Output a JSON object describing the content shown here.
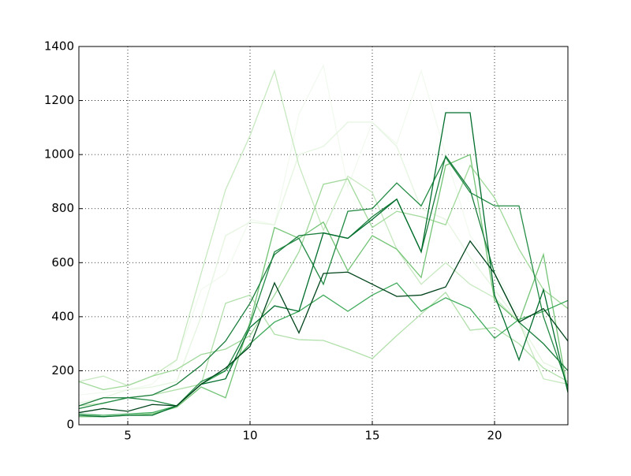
{
  "chart_data": {
    "type": "line",
    "x": [
      3,
      4,
      5,
      6,
      7,
      8,
      9,
      10,
      11,
      12,
      13,
      14,
      15,
      16,
      17,
      18,
      19,
      20,
      21,
      22,
      23
    ],
    "series": [
      {
        "color": "#f2faf0",
        "values": [
          110,
          120,
          130,
          150,
          240,
          500,
          560,
          760,
          740,
          1150,
          1330,
          880,
          1120,
          1040,
          1310,
          1000,
          700,
          580,
          400,
          300,
          200
        ]
      },
      {
        "color": "#e5f5e0",
        "values": [
          80,
          100,
          130,
          140,
          160,
          400,
          700,
          750,
          740,
          1000,
          1030,
          1120,
          1120,
          1030,
          800,
          760,
          620,
          500,
          380,
          230,
          190
        ]
      },
      {
        "color": "#c7e9c0",
        "values": [
          160,
          180,
          145,
          180,
          240,
          560,
          870,
          1070,
          1310,
          960,
          720,
          920,
          860,
          650,
          520,
          600,
          520,
          470,
          380,
          170,
          150
        ]
      },
      {
        "color": "#b2e0ab",
        "values": [
          70,
          80,
          100,
          110,
          130,
          150,
          450,
          480,
          335,
          315,
          312,
          280,
          245,
          330,
          410,
          490,
          350,
          360,
          300,
          210,
          160
        ]
      },
      {
        "color": "#a1d99b",
        "values": [
          160,
          130,
          145,
          180,
          205,
          260,
          280,
          330,
          480,
          640,
          890,
          910,
          730,
          790,
          770,
          740,
          960,
          840,
          650,
          500,
          430
        ]
      },
      {
        "color": "#74c476",
        "values": [
          30,
          30,
          35,
          40,
          65,
          140,
          100,
          380,
          730,
          690,
          750,
          570,
          700,
          650,
          545,
          960,
          1000,
          460,
          380,
          630,
          120
        ]
      },
      {
        "color": "#41ab5d",
        "values": [
          40,
          35,
          40,
          45,
          70,
          150,
          200,
          300,
          380,
          420,
          480,
          420,
          480,
          525,
          420,
          470,
          430,
          320,
          390,
          420,
          460
        ]
      },
      {
        "color": "#238b45",
        "values": [
          60,
          80,
          100,
          90,
          70,
          160,
          200,
          370,
          640,
          690,
          520,
          790,
          800,
          895,
          810,
          990,
          860,
          810,
          810,
          400,
          140
        ]
      },
      {
        "color": "#1a7d3c",
        "values": [
          70,
          100,
          100,
          110,
          150,
          220,
          310,
          450,
          630,
          700,
          710,
          690,
          770,
          835,
          640,
          995,
          870,
          560,
          380,
          300,
          200
        ]
      },
      {
        "color": "#006d2c",
        "values": [
          35,
          30,
          35,
          35,
          70,
          150,
          170,
          360,
          440,
          420,
          710,
          690,
          760,
          835,
          640,
          1155,
          1155,
          480,
          240,
          500,
          120
        ]
      },
      {
        "color": "#00441b",
        "values": [
          45,
          60,
          50,
          75,
          70,
          150,
          210,
          290,
          525,
          340,
          560,
          565,
          520,
          475,
          480,
          510,
          680,
          560,
          380,
          430,
          310
        ]
      }
    ],
    "xlim": [
      3,
      23
    ],
    "xticks": [
      5,
      10,
      15,
      20
    ],
    "ylim": [
      0,
      1400
    ],
    "yticks": [
      0,
      200,
      400,
      600,
      800,
      1000,
      1200,
      1400
    ],
    "grid": true
  }
}
